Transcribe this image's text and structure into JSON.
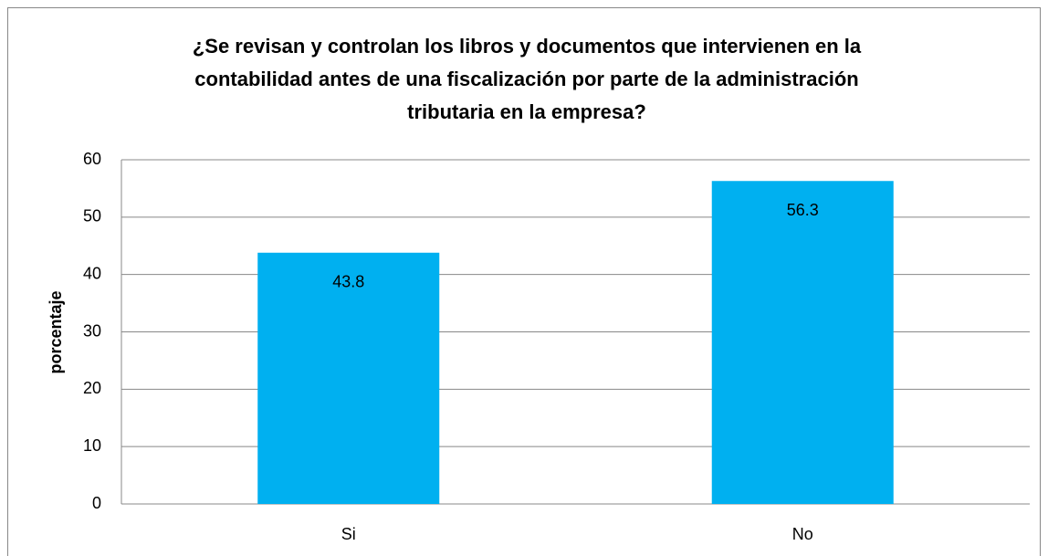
{
  "chart_data": {
    "type": "bar",
    "title": [
      "¿Se revisan y controlan los libros y documentos que intervienen en la",
      "contabilidad antes de una fiscalización por parte de la administración",
      "tributaria en la empresa?"
    ],
    "ylabel": "porcentaje",
    "categories": [
      "Si",
      "No"
    ],
    "values": [
      43.8,
      56.3
    ],
    "color": "#00b0f0",
    "ylim": [
      0,
      60
    ],
    "yticks": [
      0,
      10,
      20,
      30,
      40,
      50,
      60
    ],
    "grid": true
  }
}
